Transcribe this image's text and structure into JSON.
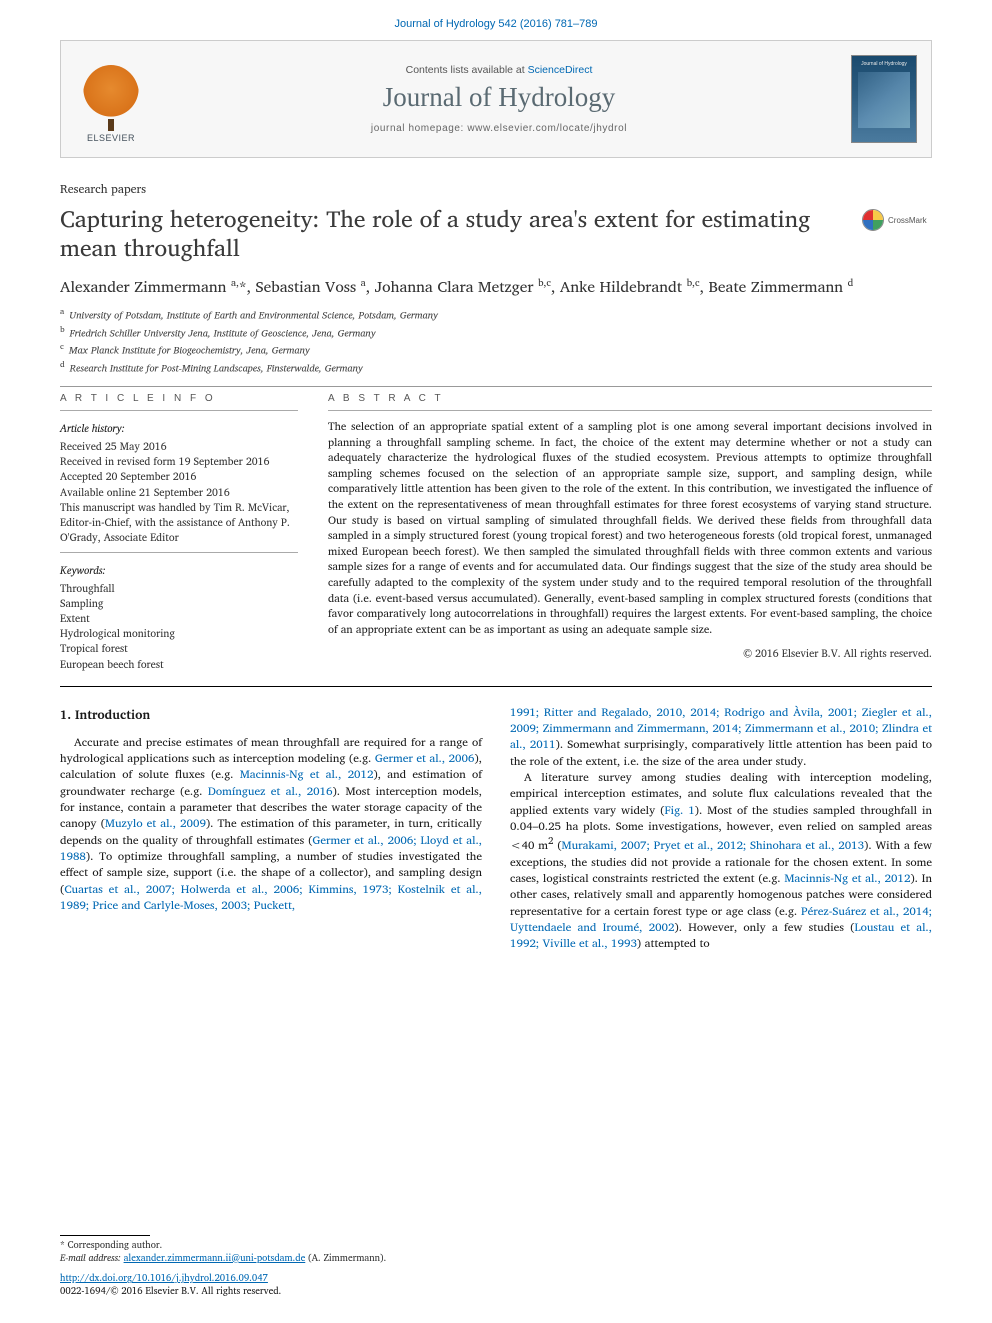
{
  "header": {
    "citation": "Journal of Hydrology 542 (2016) 781–789",
    "contents_prefix": "Contents lists available at ",
    "contents_link": "ScienceDirect",
    "journal_name": "Journal of Hydrology",
    "homepage_prefix": "journal homepage: ",
    "homepage_url": "www.elsevier.com/locate/jhydrol",
    "publisher_word": "ELSEVIER",
    "cover_label": "Journal of Hydrology"
  },
  "crossmark": {
    "label": "CrossMark",
    "colors": [
      "#e03030",
      "#f7c948",
      "#3070c0",
      "#40a060"
    ]
  },
  "article": {
    "type": "Research papers",
    "title": "Capturing heterogeneity: The role of a study area's extent for estimating mean throughfall",
    "authors_html": "Alexander Zimmermann <sup>a,</sup>*, Sebastian Voss <sup>a</sup>, Johanna Clara Metzger <sup>b,c</sup>, Anke Hildebrandt <sup>b,c</sup>, Beate Zimmermann <sup>d</sup>",
    "affiliations": [
      "a|University of Potsdam, Institute of Earth and Environmental Science, Potsdam, Germany",
      "b|Friedrich Schiller University Jena, Institute of Geoscience, Jena, Germany",
      "c|Max Planck Institute for Biogeochemistry, Jena, Germany",
      "d|Research Institute for Post-Mining Landscapes, Finsterwalde, Germany"
    ]
  },
  "info": {
    "heading": "A R T I C L E   I N F O",
    "history_label": "Article history:",
    "history": [
      "Received 25 May 2016",
      "Received in revised form 19 September 2016",
      "Accepted 20 September 2016",
      "Available online 21 September 2016",
      "This manuscript was handled by Tim R. McVicar, Editor-in-Chief, with the assistance of Anthony P. O'Grady, Associate Editor"
    ],
    "keywords_label": "Keywords:",
    "keywords": [
      "Throughfall",
      "Sampling",
      "Extent",
      "Hydrological monitoring",
      "Tropical forest",
      "European beech forest"
    ]
  },
  "abstract": {
    "heading": "A B S T R A C T",
    "text": "The selection of an appropriate spatial extent of a sampling plot is one among several important decisions involved in planning a throughfall sampling scheme. In fact, the choice of the extent may determine whether or not a study can adequately characterize the hydrological fluxes of the studied ecosystem. Previous attempts to optimize throughfall sampling schemes focused on the selection of an appropriate sample size, support, and sampling design, while comparatively little attention has been given to the role of the extent. In this contribution, we investigated the influence of the extent on the representativeness of mean throughfall estimates for three forest ecosystems of varying stand structure. Our study is based on virtual sampling of simulated throughfall fields. We derived these fields from throughfall data sampled in a simply structured forest (young tropical forest) and two heterogeneous forests (old tropical forest, unmanaged mixed European beech forest). We then sampled the simulated throughfall fields with three common extents and various sample sizes for a range of events and for accumulated data. Our findings suggest that the size of the study area should be carefully adapted to the complexity of the system under study and to the required temporal resolution of the throughfall data (i.e. event-based versus accumulated). Generally, event-based sampling in complex structured forests (conditions that favor comparatively long autocorrelations in throughfall) requires the largest extents. For event-based sampling, the choice of an appropriate extent can be as important as using an adequate sample size.",
    "copyright": "© 2016 Elsevier B.V. All rights reserved."
  },
  "body": {
    "section_heading": "1. Introduction",
    "col1_p1": "Accurate and precise estimates of mean throughfall are required for a range of hydrological applications such as interception modeling (e.g. <span class=\"link\">Germer et al., 2006</span>), calculation of solute fluxes (e.g. <span class=\"link\">Macinnis-Ng et al., 2012</span>), and estimation of groundwater recharge (e.g. <span class=\"link\">Domínguez et al., 2016</span>). Most interception models, for instance, contain a parameter that describes the water storage capacity of the canopy (<span class=\"link\">Muzylo et al., 2009</span>). The estimation of this parameter, in turn, critically depends on the quality of throughfall estimates (<span class=\"link\">Germer et al., 2006; Lloyd et al., 1988</span>). To optimize throughfall sampling, a number of studies investigated the effect of sample size, support (i.e. the shape of a collector), and sampling design (<span class=\"link\">Cuartas et al., 2007; Holwerda et al., 2006; Kimmins, 1973; Kostelnik et al., 1989; Price and Carlyle-Moses, 2003; Puckett,</span>",
    "col2_p1_frag": "<span class=\"link\">1991; Ritter and Regalado, 2010, 2014; Rodrigo and Àvila, 2001; Ziegler et al., 2009; Zimmermann and Zimmermann, 2014; Zimmermann et al., 2010; Zlindra et al., 2011</span>). Somewhat surprisingly, comparatively little attention has been paid to the role of the extent, i.e. the size of the area under study.",
    "col2_p2": "A literature survey among studies dealing with interception modeling, empirical interception estimates, and solute flux calculations revealed that the applied extents vary widely (<span class=\"link\">Fig. 1</span>). Most of the studies sampled throughfall in 0.04–0.25 ha plots. Some investigations, however, even relied on sampled areas &lt;40 m<sup>2</sup> (<span class=\"link\">Murakami, 2007; Pryet et al., 2012; Shinohara et al., 2013</span>). With a few exceptions, the studies did not provide a rationale for the chosen extent. In some cases, logistical constraints restricted the extent (e.g. <span class=\"link\">Macinnis-Ng et al., 2012</span>). In other cases, relatively small and apparently homogenous patches were considered representative for a certain forest type or age class (e.g. <span class=\"link\">Pérez-Suárez et al., 2014; Uyttendaele and Iroumé, 2002</span>). However, only a few studies (<span class=\"link\">Loustau et al., 1992; Viville et al., 1993</span>) attempted to"
  },
  "footer": {
    "corr_label": "* Corresponding author.",
    "email_label": "E-mail address: ",
    "email": "alexander.zimmermann.ii@uni-potsdam.de",
    "email_person": " (A. Zimmermann).",
    "doi_url": "http://dx.doi.org/10.1016/j.jhydrol.2016.09.047",
    "issn_line": "0022-1694/© 2016 Elsevier B.V. All rights reserved."
  },
  "colors": {
    "link": "#0068b3",
    "text": "#1a1a1a",
    "rule": "#000000",
    "header_bg": "#f7f7f7",
    "header_border": "#cccccc",
    "elsevier_orange": "#e68a2e"
  },
  "typography": {
    "body_font": "Georgia, serif",
    "title_size_pt": 18,
    "authors_size_pt": 12,
    "abstract_size_pt": 8.5,
    "body_size_pt": 9,
    "journal_name_size_pt": 20
  }
}
